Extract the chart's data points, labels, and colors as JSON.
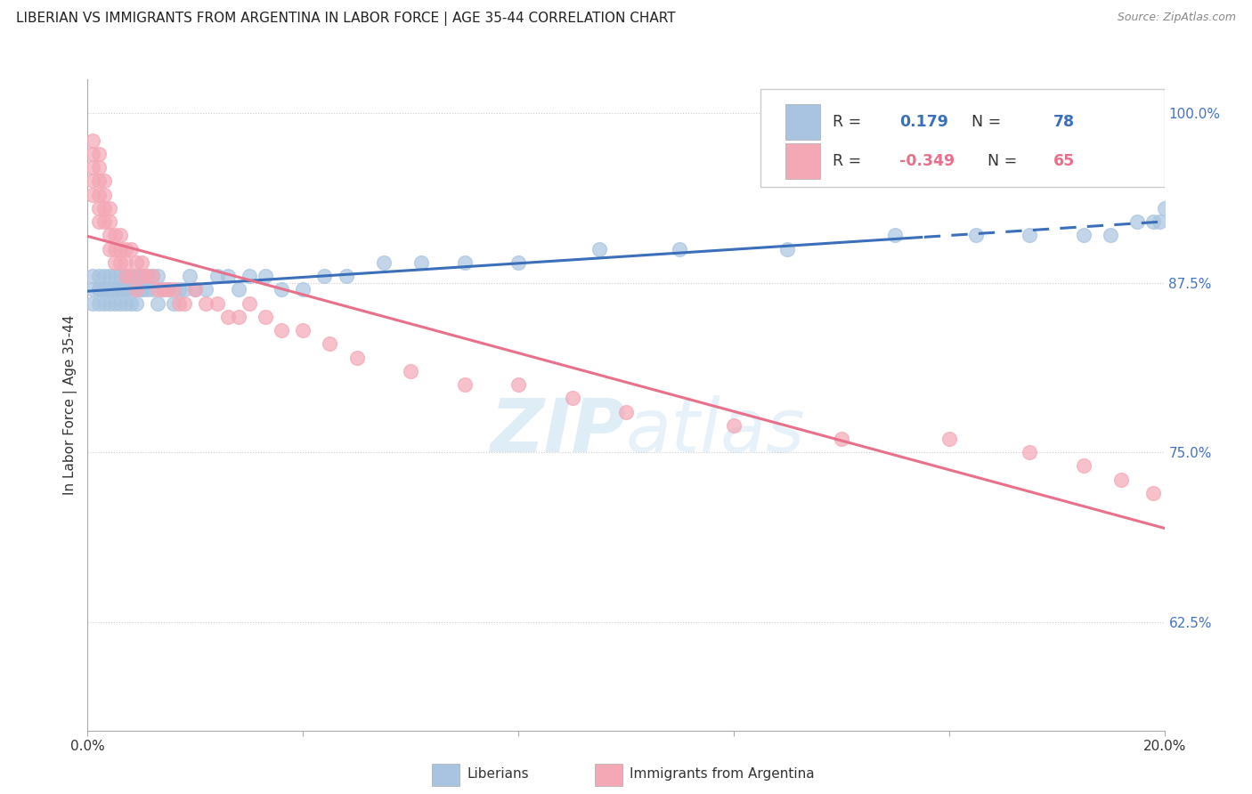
{
  "title": "LIBERIAN VS IMMIGRANTS FROM ARGENTINA IN LABOR FORCE | AGE 35-44 CORRELATION CHART",
  "source": "Source: ZipAtlas.com",
  "ylabel": "In Labor Force | Age 35-44",
  "xlim": [
    0.0,
    0.2
  ],
  "ylim": [
    0.545,
    1.025
  ],
  "xticks": [
    0.0,
    0.04,
    0.08,
    0.12,
    0.16,
    0.2
  ],
  "xticklabels": [
    "0.0%",
    "",
    "",
    "",
    "",
    "20.0%"
  ],
  "yticks": [
    0.625,
    0.75,
    0.875,
    1.0
  ],
  "yticklabels": [
    "62.5%",
    "75.0%",
    "87.5%",
    "100.0%"
  ],
  "liberian_R": 0.179,
  "liberian_N": 78,
  "argentina_R": -0.349,
  "argentina_N": 65,
  "liberian_color": "#a8c4e0",
  "argentina_color": "#f4a7b5",
  "liberian_line_color": "#3b6fba",
  "argentina_line_color": "#e8708a",
  "lib_line_solid_end": 0.155,
  "liberian_x": [
    0.001,
    0.001,
    0.001,
    0.002,
    0.002,
    0.002,
    0.002,
    0.003,
    0.003,
    0.003,
    0.003,
    0.003,
    0.004,
    0.004,
    0.004,
    0.004,
    0.005,
    0.005,
    0.005,
    0.005,
    0.005,
    0.006,
    0.006,
    0.006,
    0.006,
    0.007,
    0.007,
    0.007,
    0.007,
    0.008,
    0.008,
    0.008,
    0.009,
    0.009,
    0.009,
    0.01,
    0.01,
    0.01,
    0.01,
    0.011,
    0.011,
    0.012,
    0.012,
    0.013,
    0.013,
    0.014,
    0.015,
    0.016,
    0.017,
    0.018,
    0.019,
    0.02,
    0.022,
    0.024,
    0.026,
    0.028,
    0.03,
    0.033,
    0.036,
    0.04,
    0.044,
    0.048,
    0.055,
    0.062,
    0.07,
    0.08,
    0.095,
    0.11,
    0.13,
    0.15,
    0.165,
    0.175,
    0.185,
    0.19,
    0.195,
    0.198,
    0.199,
    0.2
  ],
  "liberian_y": [
    0.88,
    0.87,
    0.86,
    0.87,
    0.88,
    0.87,
    0.86,
    0.87,
    0.88,
    0.87,
    0.87,
    0.86,
    0.88,
    0.87,
    0.87,
    0.86,
    0.88,
    0.87,
    0.87,
    0.86,
    0.87,
    0.88,
    0.87,
    0.87,
    0.86,
    0.87,
    0.88,
    0.87,
    0.86,
    0.87,
    0.88,
    0.86,
    0.88,
    0.87,
    0.86,
    0.88,
    0.87,
    0.88,
    0.87,
    0.88,
    0.87,
    0.88,
    0.87,
    0.88,
    0.86,
    0.87,
    0.87,
    0.86,
    0.87,
    0.87,
    0.88,
    0.87,
    0.87,
    0.88,
    0.88,
    0.87,
    0.88,
    0.88,
    0.87,
    0.87,
    0.88,
    0.88,
    0.89,
    0.89,
    0.89,
    0.89,
    0.9,
    0.9,
    0.9,
    0.91,
    0.91,
    0.91,
    0.91,
    0.91,
    0.92,
    0.92,
    0.92,
    0.93
  ],
  "argentina_x": [
    0.001,
    0.001,
    0.001,
    0.001,
    0.001,
    0.002,
    0.002,
    0.002,
    0.002,
    0.002,
    0.002,
    0.003,
    0.003,
    0.003,
    0.003,
    0.004,
    0.004,
    0.004,
    0.004,
    0.005,
    0.005,
    0.005,
    0.006,
    0.006,
    0.006,
    0.007,
    0.007,
    0.007,
    0.008,
    0.008,
    0.009,
    0.009,
    0.01,
    0.01,
    0.011,
    0.012,
    0.013,
    0.014,
    0.015,
    0.016,
    0.017,
    0.018,
    0.02,
    0.022,
    0.024,
    0.026,
    0.028,
    0.03,
    0.033,
    0.036,
    0.04,
    0.045,
    0.05,
    0.06,
    0.07,
    0.08,
    0.09,
    0.1,
    0.12,
    0.14,
    0.16,
    0.175,
    0.185,
    0.192,
    0.198
  ],
  "argentina_y": [
    0.98,
    0.97,
    0.96,
    0.95,
    0.94,
    0.97,
    0.96,
    0.95,
    0.94,
    0.93,
    0.92,
    0.95,
    0.94,
    0.93,
    0.92,
    0.93,
    0.92,
    0.91,
    0.9,
    0.91,
    0.9,
    0.89,
    0.91,
    0.9,
    0.89,
    0.9,
    0.89,
    0.88,
    0.9,
    0.88,
    0.89,
    0.87,
    0.89,
    0.88,
    0.88,
    0.88,
    0.87,
    0.87,
    0.87,
    0.87,
    0.86,
    0.86,
    0.87,
    0.86,
    0.86,
    0.85,
    0.85,
    0.86,
    0.85,
    0.84,
    0.84,
    0.83,
    0.82,
    0.81,
    0.8,
    0.8,
    0.79,
    0.78,
    0.77,
    0.76,
    0.76,
    0.75,
    0.74,
    0.73,
    0.72
  ]
}
